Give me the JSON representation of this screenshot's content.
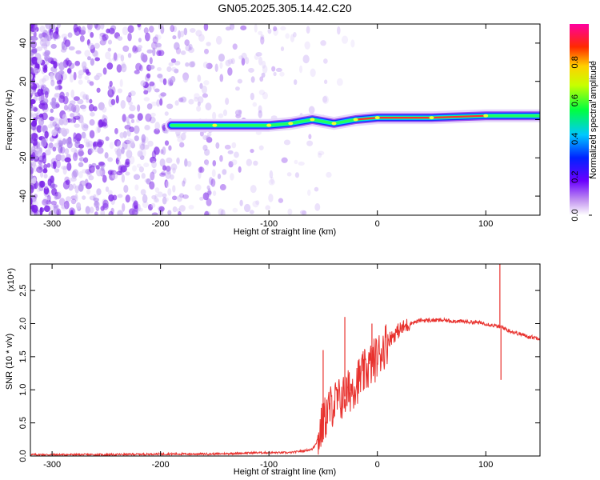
{
  "title": "GN05.2025.305.14.42.C20",
  "colors": {
    "snr_line": "#e8322e",
    "axis": "#000000",
    "background": "#ffffff"
  },
  "chart_data": [
    {
      "type": "heatmap",
      "name": "spectrogram",
      "xlabel": "Height of straight line (km)",
      "ylabel": "Frequency (Hz)",
      "xlim": [
        -320,
        150
      ],
      "ylim": [
        -50,
        50
      ],
      "xticks": [
        -300,
        -200,
        -100,
        0,
        100
      ],
      "yticks": [
        -40,
        -20,
        0,
        20,
        40
      ],
      "colorbar": {
        "label": "Normalized spectral amplitude",
        "range": [
          0,
          1
        ],
        "ticks": [
          "0.0",
          "0.2",
          "0.4",
          "0.6",
          "0.8"
        ]
      },
      "ridge": [
        {
          "x": -190,
          "f": -3
        },
        {
          "x": -150,
          "f": -3
        },
        {
          "x": -100,
          "f": -3
        },
        {
          "x": -80,
          "f": -2
        },
        {
          "x": -60,
          "f": 0
        },
        {
          "x": -40,
          "f": -2
        },
        {
          "x": -20,
          "f": 0
        },
        {
          "x": 0,
          "f": 1
        },
        {
          "x": 50,
          "f": 1
        },
        {
          "x": 100,
          "f": 2
        },
        {
          "x": 150,
          "f": 2
        }
      ]
    },
    {
      "type": "line",
      "name": "snr",
      "xlabel": "Height of straight line (km)",
      "ylabel": "SNR (10 * v/v)",
      "yscale_label": "(x10⁴)",
      "xlim": [
        -320,
        150
      ],
      "ylim": [
        0,
        2.9
      ],
      "xticks": [
        -300,
        -200,
        -100,
        0,
        100
      ],
      "yticks": [
        "0.0",
        "0.5",
        "1.0",
        "1.5",
        "2.0",
        "2.5"
      ],
      "series": [
        {
          "name": "SNR",
          "x": [
            -320,
            -250,
            -200,
            -150,
            -110,
            -100,
            -80,
            -60,
            -55,
            -50,
            -45,
            -40,
            -35,
            -30,
            -20,
            -10,
            0,
            10,
            20,
            30,
            40,
            50,
            60,
            70,
            80,
            90,
            100,
            105,
            110,
            112,
            115,
            120,
            130,
            140,
            150
          ],
          "y": [
            0.02,
            0.02,
            0.03,
            0.03,
            0.05,
            0.05,
            0.05,
            0.1,
            0.25,
            0.5,
            0.7,
            0.8,
            0.85,
            0.9,
            1.1,
            1.3,
            1.5,
            1.75,
            1.9,
            2.0,
            2.05,
            2.05,
            2.05,
            2.04,
            2.03,
            2.02,
            2.0,
            1.98,
            1.96,
            1.95,
            1.95,
            1.9,
            1.85,
            1.8,
            1.78
          ]
        }
      ],
      "spikes": [
        {
          "x": -50,
          "y": 1.6
        },
        {
          "x": -30,
          "y": 2.1
        },
        {
          "x": -5,
          "y": 2.0
        },
        {
          "x": 113,
          "y": 2.9
        },
        {
          "x": 114,
          "y": 1.15
        }
      ]
    }
  ]
}
